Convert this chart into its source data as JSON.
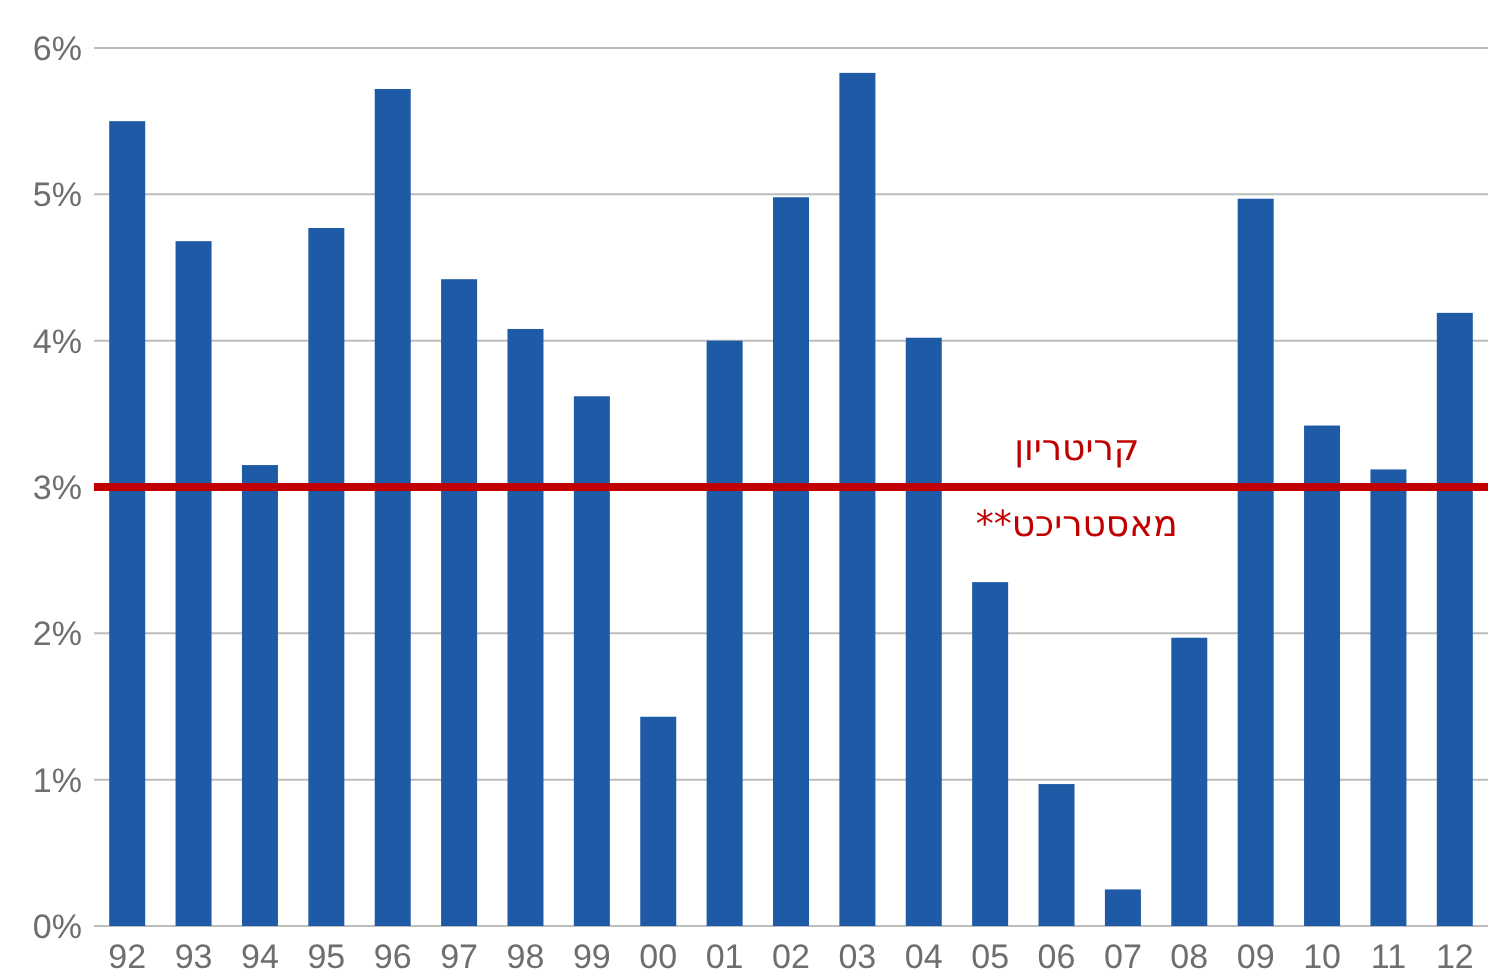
{
  "chart_data": {
    "type": "bar",
    "categories": [
      "92",
      "93",
      "94",
      "95",
      "96",
      "97",
      "98",
      "99",
      "00",
      "01",
      "02",
      "03",
      "04",
      "05",
      "06",
      "07",
      "08",
      "09",
      "10",
      "11",
      "12"
    ],
    "values": [
      5.5,
      4.68,
      3.15,
      4.77,
      5.72,
      4.42,
      4.08,
      3.62,
      1.43,
      4.0,
      4.98,
      5.83,
      4.02,
      2.35,
      0.97,
      0.25,
      1.97,
      4.97,
      3.42,
      3.12,
      4.19
    ],
    "color": "#1f5aa6",
    "ylim": [
      0,
      6
    ],
    "yticks": [
      {
        "value": 0,
        "label": "0%"
      },
      {
        "value": 1,
        "label": "1%"
      },
      {
        "value": 2,
        "label": "2%"
      },
      {
        "value": 3,
        "label": "3%"
      },
      {
        "value": 4,
        "label": "4%"
      },
      {
        "value": 5,
        "label": "5%"
      },
      {
        "value": 6,
        "label": "6%"
      }
    ],
    "grid": "y",
    "ref_lines": [
      {
        "axis": "y",
        "value": 3,
        "label": "קריטריון מאסטריכט**",
        "color": "#c00000"
      }
    ]
  }
}
